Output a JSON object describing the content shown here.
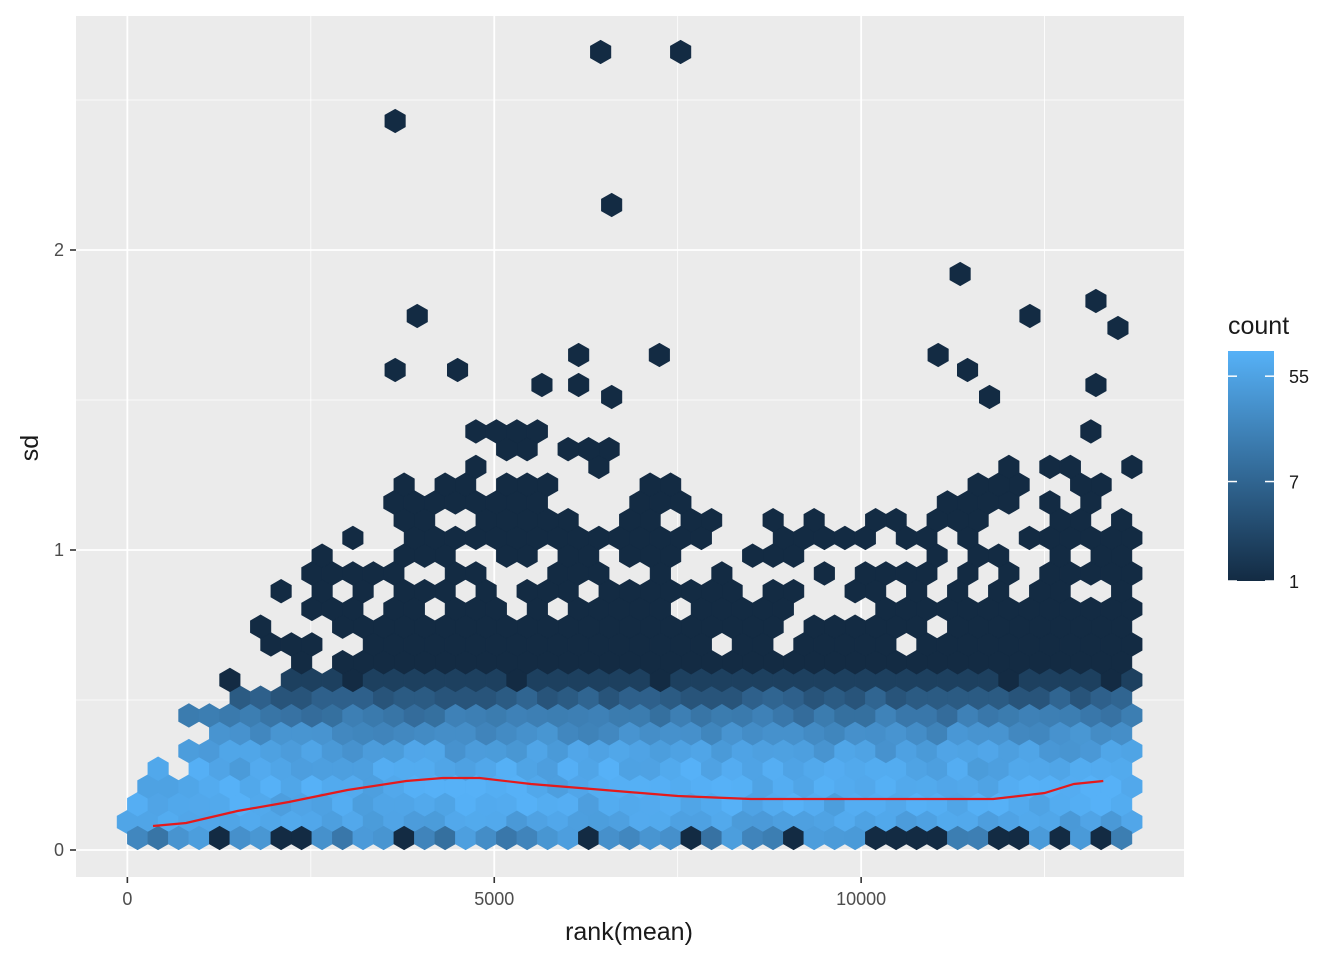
{
  "chart_data": {
    "type": "hexbin",
    "title": "",
    "xlabel": "rank(mean)",
    "ylabel": "sd",
    "xlim": [
      -700,
      14400
    ],
    "ylim": [
      -0.09,
      2.78
    ],
    "x_ticks": [
      0,
      5000,
      10000
    ],
    "x_tick_labels": [
      "0",
      "5000",
      "10000"
    ],
    "y_ticks": [
      0,
      1,
      2
    ],
    "y_tick_labels": [
      "0",
      "1",
      "2"
    ],
    "grid": true,
    "legend": {
      "title": "count",
      "position": "right",
      "scale": "log",
      "range": [
        1,
        90
      ],
      "ticks": [
        1,
        7,
        55
      ],
      "tick_labels": [
        "1",
        "7",
        "55"
      ],
      "color_low": "#132B43",
      "color_high": "#56B1F7"
    },
    "outlier_hexes": [
      {
        "x": 6450,
        "y": 2.66,
        "count": 1
      },
      {
        "x": 7540,
        "y": 2.66,
        "count": 1
      },
      {
        "x": 3650,
        "y": 2.43,
        "count": 1
      },
      {
        "x": 6600,
        "y": 2.15,
        "count": 1
      },
      {
        "x": 11350,
        "y": 1.92,
        "count": 1
      },
      {
        "x": 13200,
        "y": 1.83,
        "count": 1
      },
      {
        "x": 3950,
        "y": 1.78,
        "count": 1
      },
      {
        "x": 12300,
        "y": 1.78,
        "count": 1
      },
      {
        "x": 13500,
        "y": 1.74,
        "count": 1
      },
      {
        "x": 6150,
        "y": 1.65,
        "count": 1
      },
      {
        "x": 7250,
        "y": 1.65,
        "count": 1
      },
      {
        "x": 11050,
        "y": 1.65,
        "count": 1
      },
      {
        "x": 3650,
        "y": 1.6,
        "count": 1
      },
      {
        "x": 4500,
        "y": 1.6,
        "count": 1
      },
      {
        "x": 11450,
        "y": 1.6,
        "count": 1
      },
      {
        "x": 5650,
        "y": 1.55,
        "count": 1
      },
      {
        "x": 6150,
        "y": 1.55,
        "count": 1
      },
      {
        "x": 13200,
        "y": 1.55,
        "count": 1
      },
      {
        "x": 6600,
        "y": 1.51,
        "count": 1
      },
      {
        "x": 11750,
        "y": 1.51,
        "count": 1
      }
    ],
    "hex_cloud": {
      "x_range": [
        0,
        13750
      ],
      "sd_upper_envelope": [
        [
          0,
          0.15
        ],
        [
          700,
          0.42
        ],
        [
          1500,
          0.68
        ],
        [
          2200,
          0.92
        ],
        [
          3000,
          1.1
        ],
        [
          4000,
          1.35
        ],
        [
          5000,
          1.45
        ],
        [
          6000,
          1.45
        ],
        [
          7000,
          1.3
        ],
        [
          8000,
          1.2
        ],
        [
          9000,
          1.1
        ],
        [
          10000,
          1.2
        ],
        [
          11000,
          1.15
        ],
        [
          12000,
          1.3
        ],
        [
          13000,
          1.45
        ],
        [
          13750,
          1.3
        ]
      ],
      "dense_sd": 0.2,
      "spread_sd": 0.18,
      "peak_count": 90
    },
    "smooth_line": {
      "color": "#E41A1C",
      "x": [
        350,
        800,
        1500,
        2200,
        3000,
        3800,
        4300,
        4800,
        5500,
        6500,
        7500,
        8500,
        9500,
        10500,
        11300,
        11800,
        12500,
        12900,
        13300
      ],
      "y": [
        0.08,
        0.09,
        0.13,
        0.16,
        0.2,
        0.23,
        0.24,
        0.24,
        0.22,
        0.2,
        0.18,
        0.17,
        0.17,
        0.17,
        0.17,
        0.17,
        0.19,
        0.22,
        0.23
      ]
    }
  }
}
